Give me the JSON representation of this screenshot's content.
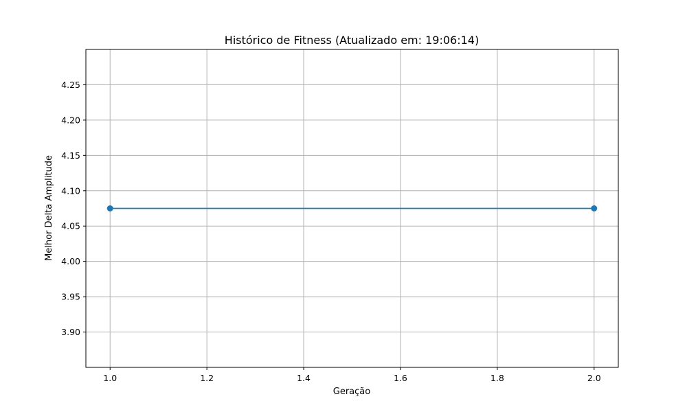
{
  "chart_data": {
    "type": "line",
    "title": "Histórico de Fitness (Atualizado em: 19:06:14)",
    "xlabel": "Geração",
    "ylabel": "Melhor Delta Amplitude",
    "xlim": [
      0.95,
      2.05
    ],
    "ylim": [
      3.85,
      4.3
    ],
    "xticks": [
      1.0,
      1.2,
      1.4,
      1.6,
      1.8,
      2.0
    ],
    "xtick_labels": [
      "1.0",
      "1.2",
      "1.4",
      "1.6",
      "1.8",
      "2.0"
    ],
    "yticks": [
      3.9,
      3.95,
      4.0,
      4.05,
      4.1,
      4.15,
      4.2,
      4.25
    ],
    "ytick_labels": [
      "3.90",
      "3.95",
      "4.00",
      "4.05",
      "4.10",
      "4.15",
      "4.20",
      "4.25"
    ],
    "grid": true,
    "series": [
      {
        "x": [
          1,
          2
        ],
        "values": [
          4.075,
          4.075
        ],
        "color": "#1f77b4",
        "marker": "circle"
      }
    ]
  }
}
